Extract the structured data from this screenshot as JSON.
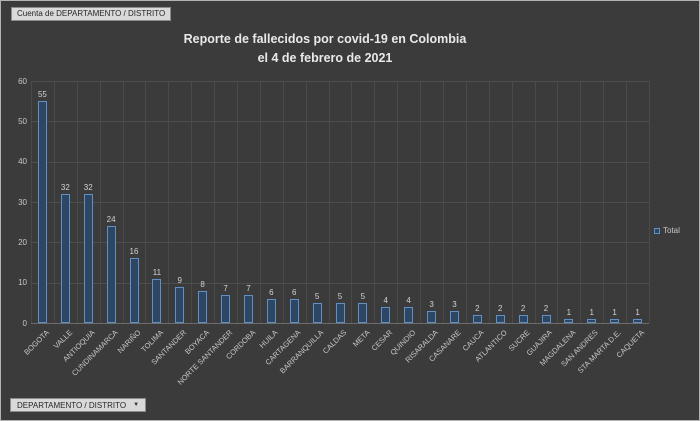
{
  "pivot_button": {
    "label": "Cuenta de DEPARTAMENTO / DISTRITO"
  },
  "title": {
    "line1": "Reporte de fallecidos por covid-19 en Colombia",
    "line2": "el 4 de febrero de 2021"
  },
  "legend": {
    "label": "Total"
  },
  "axis_field_button": {
    "label": "DEPARTAMENTO / DISTRITO",
    "arrow": "▼"
  },
  "chart_data": {
    "type": "bar",
    "title": "Reporte de fallecidos por covid-19 en Colombia el 4 de febrero de 2021",
    "series_name": "Total",
    "categories": [
      "BOGOTA",
      "VALLE",
      "ANTIOQUIA",
      "CUNDINAMARCA",
      "NARIÑO",
      "TOLIMA",
      "SANTANDER",
      "BOYACA",
      "NORTE SANTANDER",
      "CORDOBA",
      "HUILA",
      "CARTAGENA",
      "BARRANQUILLA",
      "CALDAS",
      "META",
      "CESAR",
      "QUINDIO",
      "RISARALDA",
      "CASANARE",
      "CAUCA",
      "ATLANTICO",
      "SUCRE",
      "GUAJIRA",
      "MAGDALENA",
      "SAN ANDRES",
      "STA MARTA D.E.",
      "CAQUETA"
    ],
    "values": [
      55,
      32,
      32,
      24,
      16,
      11,
      9,
      8,
      7,
      7,
      6,
      6,
      5,
      5,
      5,
      4,
      4,
      3,
      3,
      2,
      2,
      2,
      2,
      1,
      1,
      1,
      1
    ],
    "data_labels": true,
    "xlabel": "",
    "ylabel": "",
    "ylim": [
      0,
      60
    ],
    "yticks": [
      0,
      10,
      20,
      30,
      40,
      50,
      60
    ],
    "grid": "both",
    "legend_position": "right",
    "colors": {
      "background": "#3b3b3b",
      "bar_fill": "#2c4663",
      "bar_border": "#6190c5",
      "gridline": "#4e4e4e",
      "axis_text": "#c7c7c7",
      "title_text": "#e9e9e9"
    }
  }
}
